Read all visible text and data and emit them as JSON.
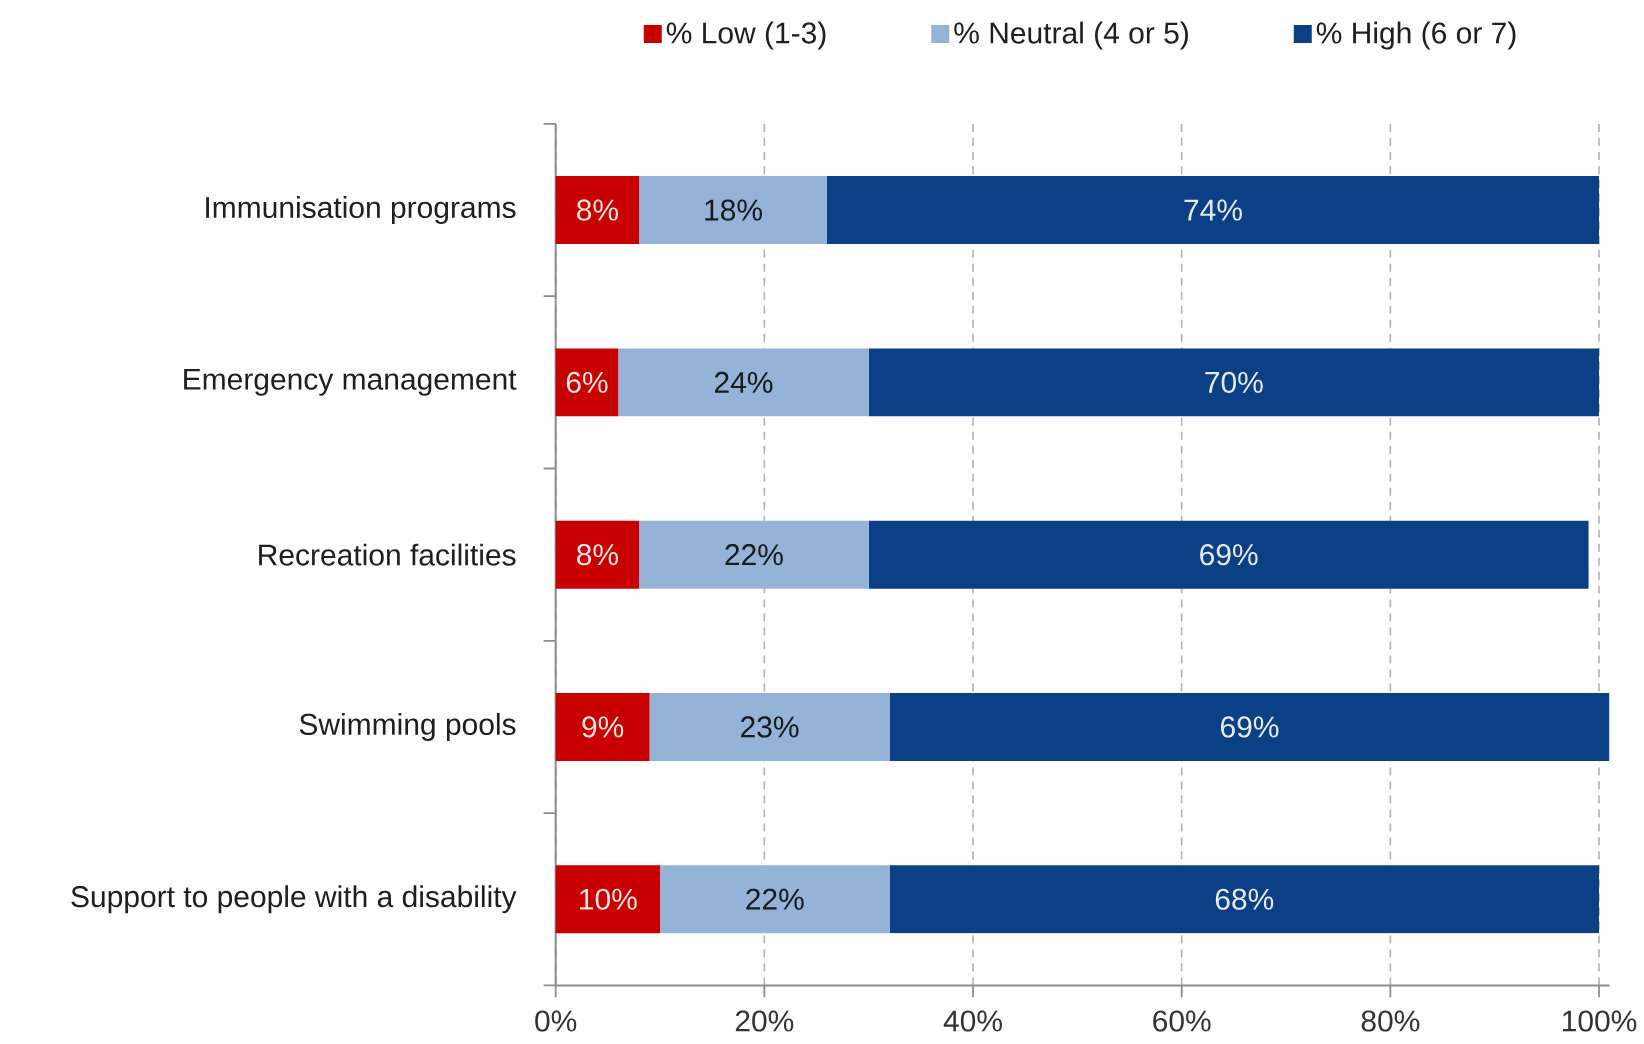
{
  "chart_data": {
    "type": "bar",
    "orientation": "horizontal",
    "stacked": true,
    "categories": [
      "Immunisation programs",
      "Emergency management",
      "Recreation facilities",
      "Swimming pools",
      "Support to people with a disability"
    ],
    "series": [
      {
        "name": "% Low (1-3)",
        "color": "#c80000",
        "values": [
          8,
          6,
          8,
          9,
          10
        ],
        "value_labels": [
          "8%",
          "6%",
          "8%",
          "9%",
          "10%"
        ]
      },
      {
        "name": "% Neutral (4 or 5)",
        "color": "#95b3d7",
        "values": [
          18,
          24,
          22,
          23,
          22
        ],
        "value_labels": [
          "18%",
          "24%",
          "22%",
          "23%",
          "22%"
        ]
      },
      {
        "name": "% High (6 or 7)",
        "color": "#0b3f86",
        "values": [
          74,
          70,
          69,
          69,
          68
        ],
        "value_labels": [
          "74%",
          "70%",
          "69%",
          "69%",
          "68%"
        ]
      }
    ],
    "xlim": [
      0,
      101
    ],
    "xticks": [
      {
        "value": 0,
        "label": "0%"
      },
      {
        "value": 20,
        "label": "20%"
      },
      {
        "value": 40,
        "label": "40%"
      },
      {
        "value": 60,
        "label": "60%"
      },
      {
        "value": 80,
        "label": "80%"
      },
      {
        "value": 100,
        "label": "100%"
      }
    ],
    "grid": "x",
    "legend": "top"
  }
}
